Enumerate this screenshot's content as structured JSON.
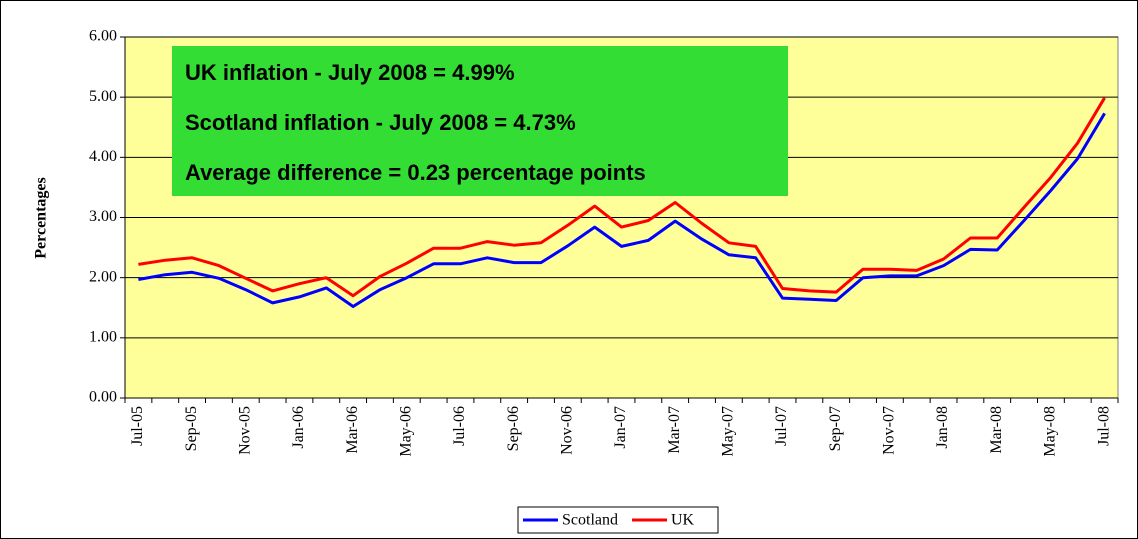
{
  "chart_data": {
    "type": "line",
    "y_label": "Percentages",
    "annotations": [
      "UK inflation - July 2008 = 4.99%",
      "Scotland inflation - July 2008 = 4.73%",
      "Average difference = 0.23 percentage points"
    ],
    "categories": [
      "Jul-05",
      null,
      "Sep-05",
      null,
      "Nov-05",
      null,
      "Jan-06",
      null,
      "Mar-06",
      null,
      "May-06",
      null,
      "Jul-06",
      null,
      "Sep-06",
      null,
      "Nov-06",
      null,
      "Jan-07",
      null,
      "Mar-07",
      null,
      "May-07",
      null,
      "Jul-07",
      null,
      "Sep-07",
      null,
      "Nov-07",
      null,
      "Jan-08",
      null,
      "Mar-08",
      null,
      "May-08",
      null,
      "Jul-08"
    ],
    "series": [
      {
        "name": "Scotland",
        "color": "#0000ff",
        "values": [
          1.97,
          2.05,
          2.09,
          1.99,
          1.8,
          1.58,
          1.68,
          1.83,
          1.52,
          1.8,
          2.0,
          2.23,
          2.23,
          2.33,
          2.25,
          2.25,
          2.53,
          2.84,
          2.52,
          2.62,
          2.94,
          2.64,
          2.38,
          2.33,
          1.66,
          1.64,
          1.62,
          2.0,
          2.03,
          2.03,
          2.2,
          2.47,
          2.46,
          2.95,
          3.45,
          3.98,
          4.73
        ]
      },
      {
        "name": "UK",
        "color": "#ff0000",
        "values": [
          2.22,
          2.29,
          2.33,
          2.2,
          1.99,
          1.78,
          1.9,
          2.0,
          1.7,
          2.02,
          2.24,
          2.49,
          2.49,
          2.6,
          2.54,
          2.58,
          2.87,
          3.19,
          2.84,
          2.95,
          3.25,
          2.9,
          2.58,
          2.52,
          1.82,
          1.78,
          1.76,
          2.14,
          2.14,
          2.12,
          2.31,
          2.66,
          2.66,
          3.17,
          3.67,
          4.24,
          4.99
        ]
      }
    ],
    "ylim": [
      0,
      6
    ],
    "yticks": [
      {
        "value": 0,
        "label": "0.00"
      },
      {
        "value": 1,
        "label": "1.00"
      },
      {
        "value": 2,
        "label": "2.00"
      },
      {
        "value": 3,
        "label": "3.00"
      },
      {
        "value": 4,
        "label": "4.00"
      },
      {
        "value": 5,
        "label": "5.00"
      },
      {
        "value": 6,
        "label": "6.00"
      }
    ],
    "grid": true,
    "legend": "bottom",
    "plot_background": "#ffff99",
    "annotation_background": "#33dd33"
  }
}
